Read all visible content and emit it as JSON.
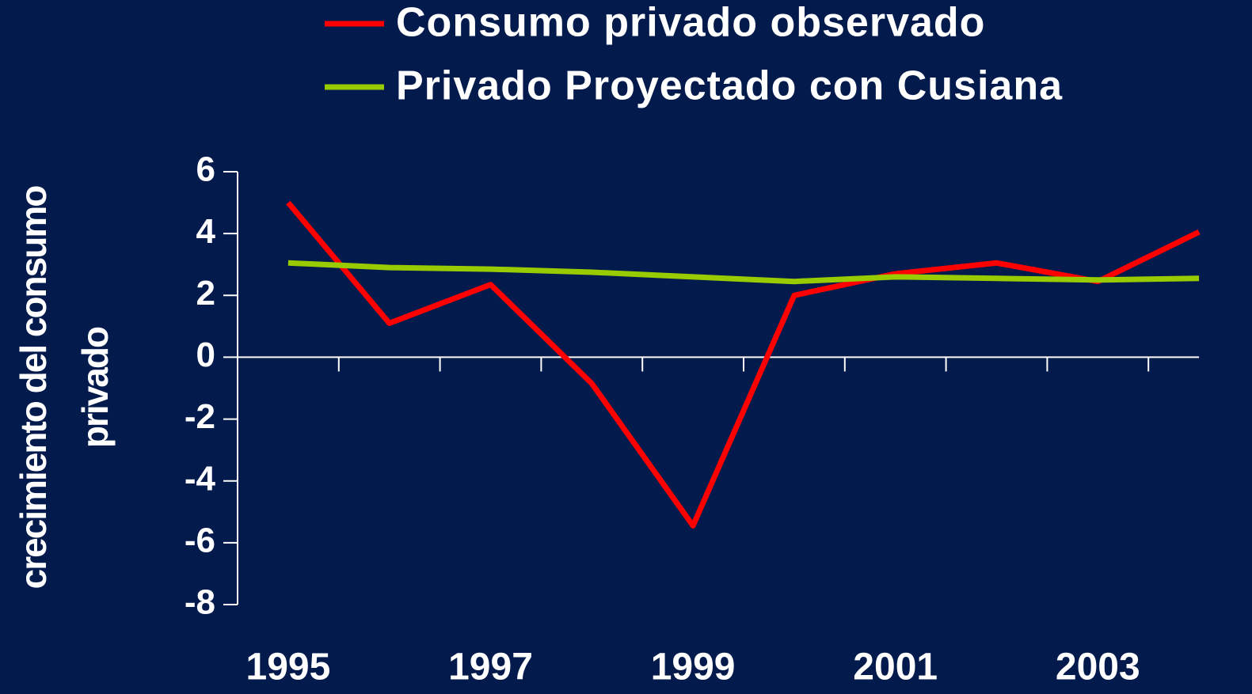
{
  "chart_data": {
    "type": "line",
    "y_label": "crecimiento del consumo privado",
    "categories": [
      "1995",
      null,
      "1997",
      null,
      "1999",
      null,
      "2001",
      null,
      "2003",
      null
    ],
    "series": [
      {
        "name": "Consumo privado observado",
        "color": "#ff0000",
        "values": [
          5.0,
          1.1,
          2.35,
          -0.85,
          -5.45,
          2.0,
          2.7,
          3.05,
          2.45,
          4.05
        ]
      },
      {
        "name": "Privado Proyectado con Cusiana",
        "color": "#99cc00",
        "values": [
          3.05,
          2.9,
          2.85,
          2.75,
          2.6,
          2.45,
          2.6,
          2.55,
          2.5,
          2.55
        ]
      }
    ],
    "ylim": [
      -8,
      6
    ],
    "yticks": [
      -8,
      -6,
      -4,
      -2,
      0,
      2,
      4,
      6
    ]
  }
}
